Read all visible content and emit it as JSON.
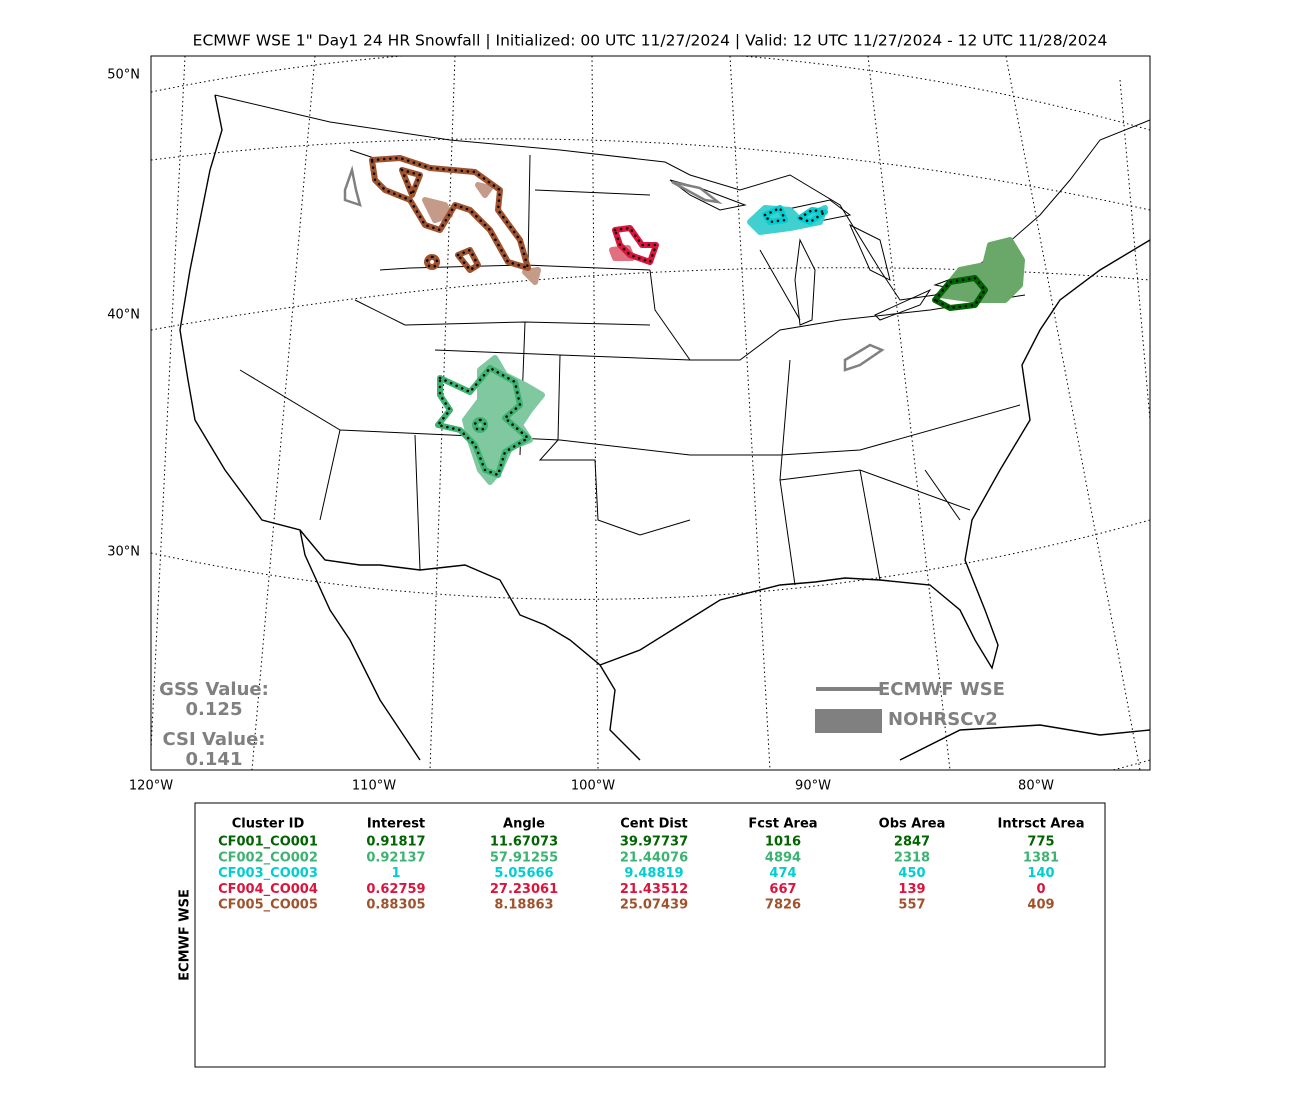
{
  "header": {
    "title": "ECMWF WSE 1\" Day1 24 HR Snowfall | Initialized: 00 UTC 11/27/2024 | Valid: 12 UTC 11/27/2024 - 12 UTC 11/28/2024"
  },
  "map": {
    "lat_labels": [
      "50°N",
      "40°N",
      "30°N"
    ],
    "lon_labels": [
      "120°W",
      "110°W",
      "100°W",
      "90°W",
      "80°W"
    ],
    "scores": [
      {
        "label": "GSS Value:",
        "value": 0.125
      },
      {
        "label": "CSI Value:",
        "value": 0.141
      }
    ],
    "legend": [
      "ECMWF WSE",
      "NOHRSCv2"
    ]
  },
  "table": {
    "side_label": "ECMWF WSE",
    "columns": [
      "Cluster ID",
      "Interest",
      "Angle",
      "Cent Dist",
      "Fcst Area",
      "Obs Area",
      "Intrsct Area"
    ],
    "rows": [
      {
        "color": "#006400",
        "cells": [
          "CF001_CO001",
          0.91817,
          11.67073,
          39.97737,
          1016,
          2847,
          775
        ]
      },
      {
        "color": "#3cb371",
        "cells": [
          "CF002_CO002",
          0.92137,
          57.91255,
          21.44076,
          4894,
          2318,
          1381
        ]
      },
      {
        "color": "#00ced1",
        "cells": [
          "CF003_CO003",
          1,
          5.05666,
          9.48819,
          474,
          450,
          140
        ]
      },
      {
        "color": "#dc143c",
        "cells": [
          "CF004_CO004",
          0.62759,
          27.23061,
          21.43512,
          667,
          139,
          0
        ]
      },
      {
        "color": "#a0522d",
        "cells": [
          "CF005_CO005",
          0.88305,
          8.18863,
          25.07439,
          7826,
          557,
          409
        ]
      }
    ]
  }
}
